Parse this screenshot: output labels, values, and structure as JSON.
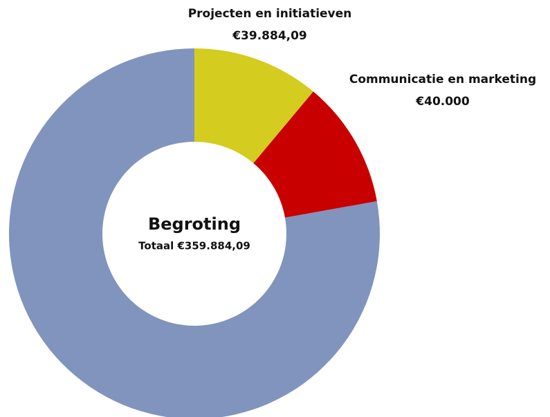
{
  "chart_data": {
    "type": "donut",
    "title": "Begroting",
    "subtitle": "Totaal €359.884,09",
    "categories": [
      "Projecten en initiatieven",
      "Communicatie en marketing",
      null
    ],
    "values": [
      39884.09,
      40000,
      280000
    ],
    "value_labels": [
      "€39.884,09",
      "€40.000",
      null
    ],
    "colors": [
      "#d4cc1f",
      "#c80000",
      "#8094bd"
    ]
  }
}
